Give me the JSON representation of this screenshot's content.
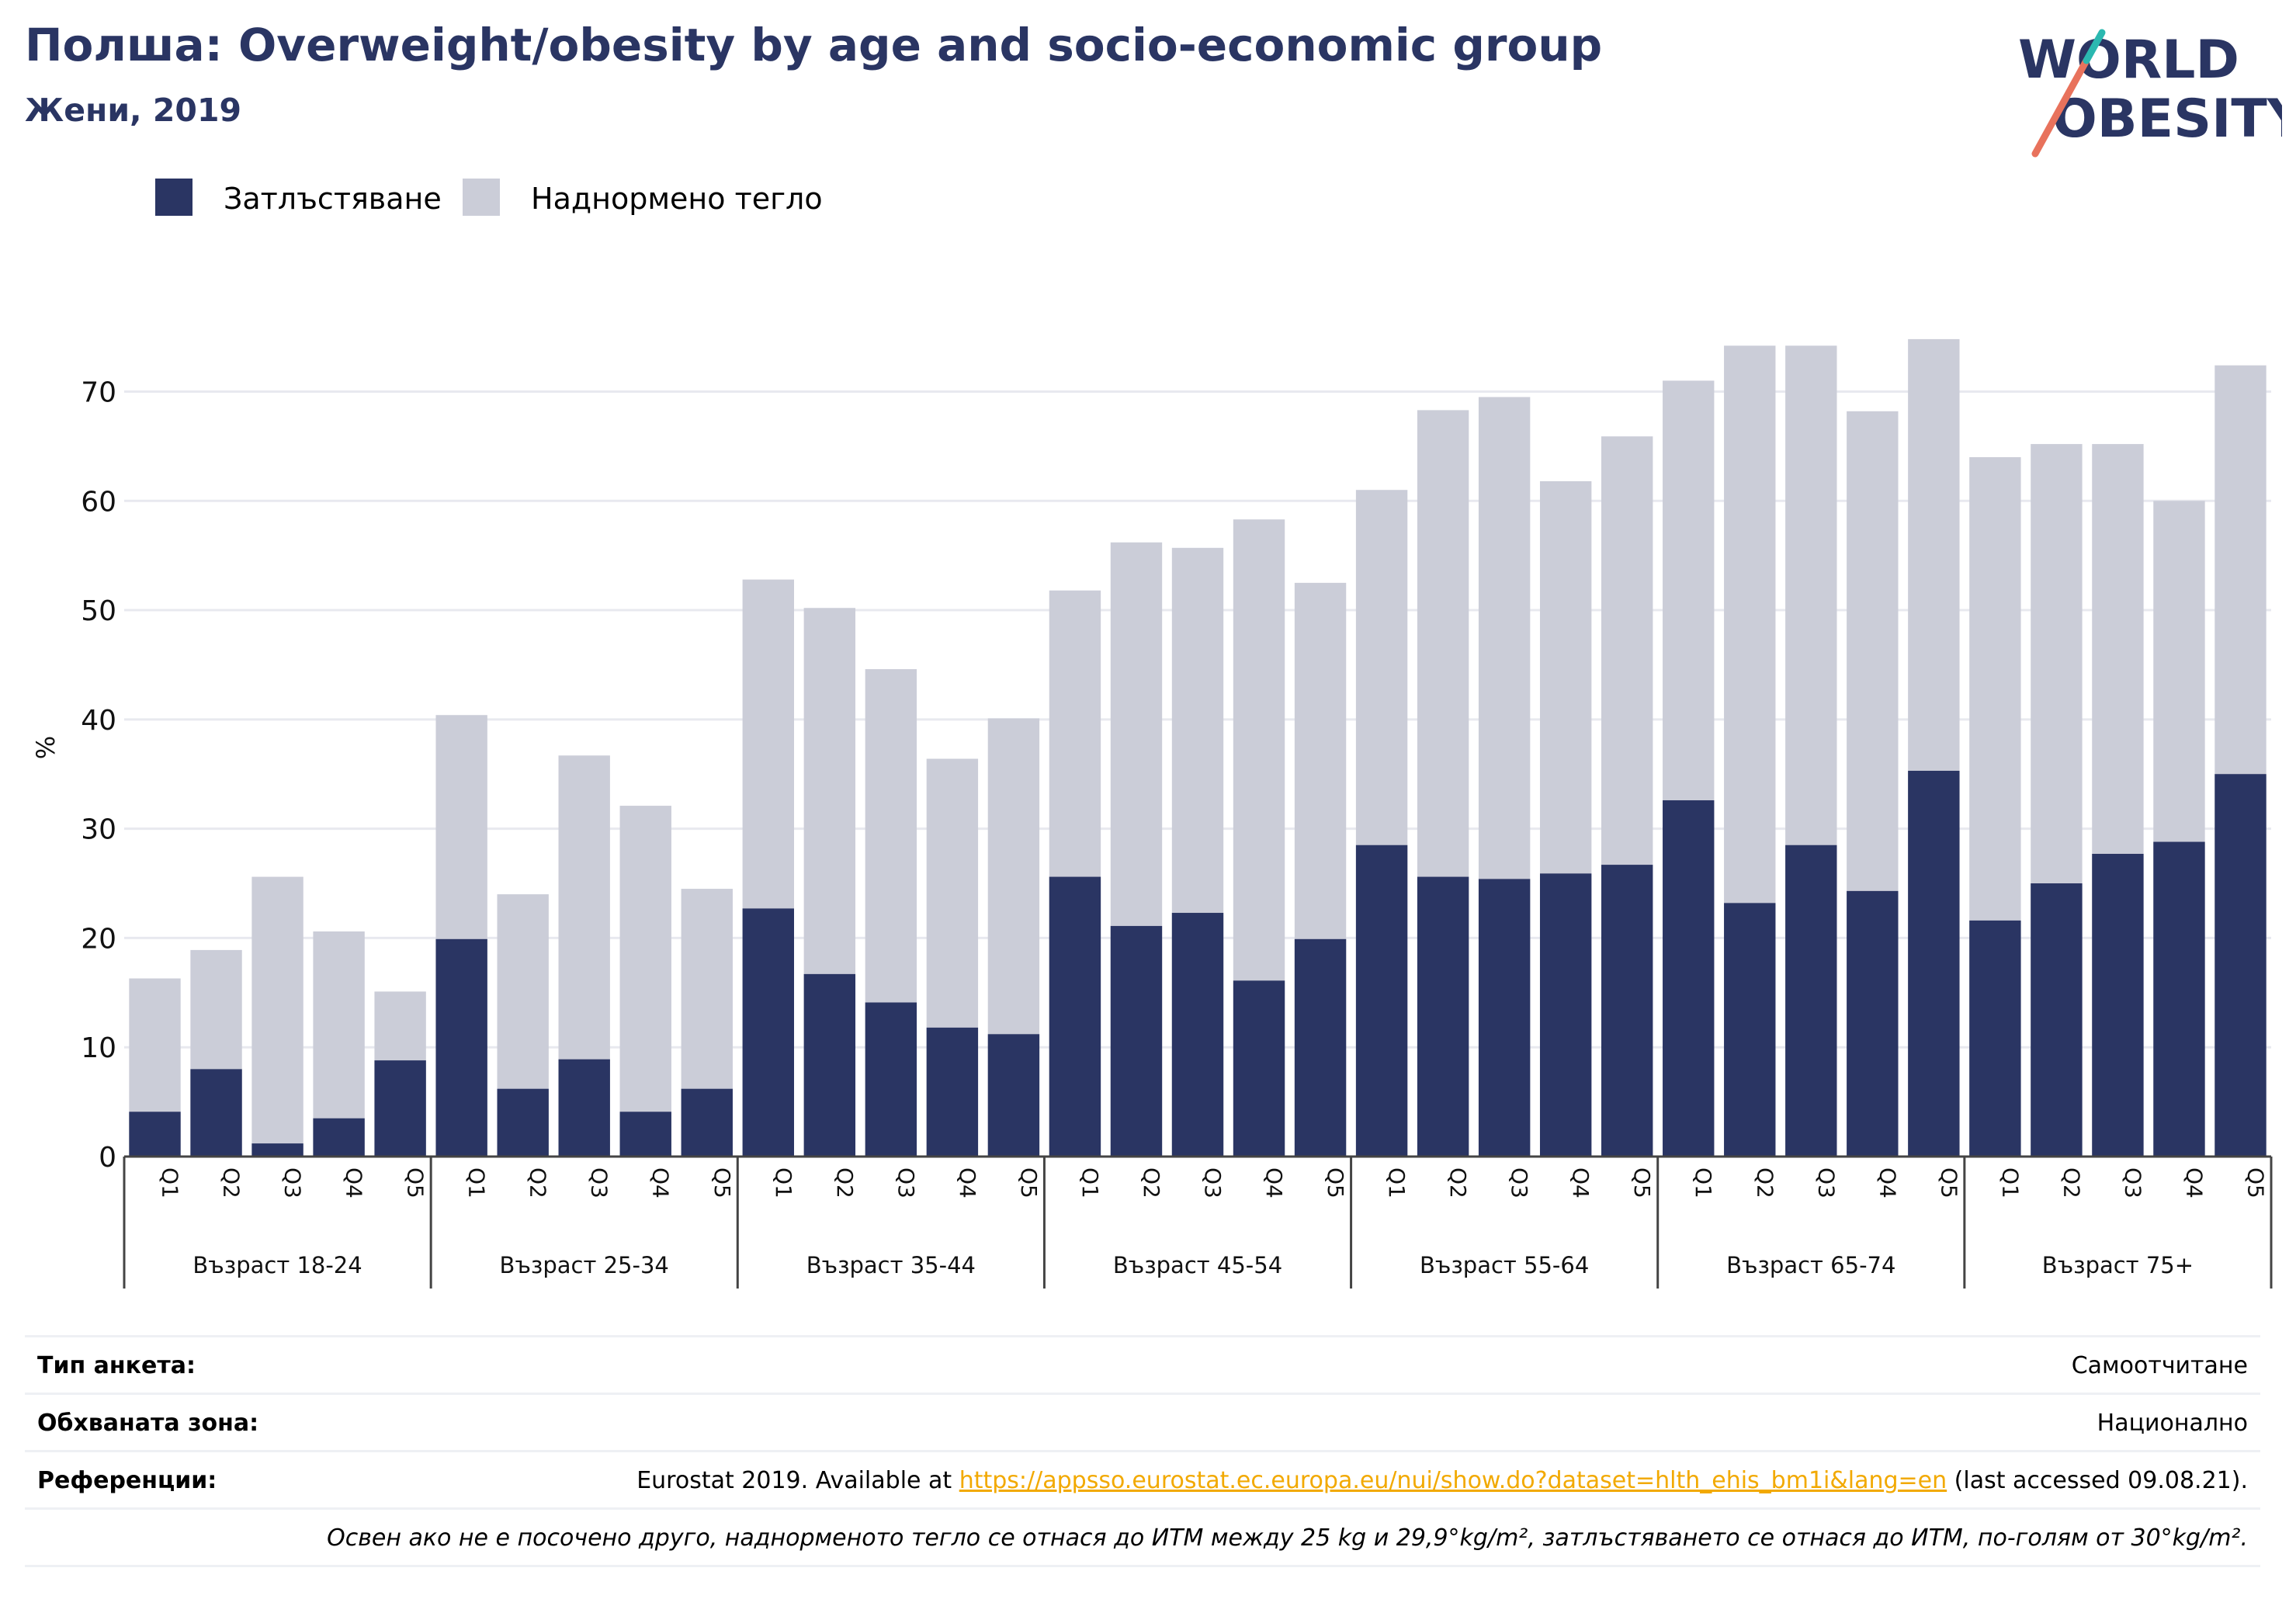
{
  "header": {
    "title": "Полша: Overweight/obesity by age and socio-economic group",
    "subtitle": "Жени, 2019"
  },
  "logo": {
    "line1": "WORLD",
    "line2": "OBESITY",
    "colors": {
      "text": "#2a3563",
      "slash_teal": "#2bb8b0",
      "slash_coral": "#e8725c"
    }
  },
  "legend": {
    "items": [
      {
        "label": "Затлъстяване",
        "color": "#2a3563"
      },
      {
        "label": "Наднормено тегло",
        "color": "#cbcdd8"
      }
    ]
  },
  "chart_data": {
    "type": "bar",
    "stacked": true,
    "ylabel": "%",
    "ylim": [
      0,
      76
    ],
    "yticks": [
      0,
      10,
      20,
      30,
      40,
      50,
      60,
      70
    ],
    "grid": true,
    "colors": {
      "obesity": "#2a3563",
      "overweight": "#cbcdd8",
      "grid": "#e8e9ef"
    },
    "groups": [
      {
        "label": "Възраст 18-24",
        "categories": [
          "Q1",
          "Q2",
          "Q3",
          "Q4",
          "Q5"
        ],
        "obesity": [
          4.1,
          8.0,
          1.2,
          3.5,
          8.8
        ],
        "total": [
          16.3,
          18.9,
          25.6,
          20.6,
          15.1
        ]
      },
      {
        "label": "Възраст 25-34",
        "categories": [
          "Q1",
          "Q2",
          "Q3",
          "Q4",
          "Q5"
        ],
        "obesity": [
          19.9,
          6.2,
          8.9,
          4.1,
          6.2
        ],
        "total": [
          40.4,
          24.0,
          36.7,
          32.1,
          24.5
        ]
      },
      {
        "label": "Възраст 35-44",
        "categories": [
          "Q1",
          "Q2",
          "Q3",
          "Q4",
          "Q5"
        ],
        "obesity": [
          22.7,
          16.7,
          14.1,
          11.8,
          11.2
        ],
        "total": [
          52.8,
          50.2,
          44.6,
          36.4,
          40.1
        ]
      },
      {
        "label": "Възраст 45-54",
        "categories": [
          "Q1",
          "Q2",
          "Q3",
          "Q4",
          "Q5"
        ],
        "obesity": [
          25.6,
          21.1,
          22.3,
          16.1,
          19.9
        ],
        "total": [
          51.8,
          56.2,
          55.7,
          58.3,
          52.5
        ]
      },
      {
        "label": "Възраст 55-64",
        "categories": [
          "Q1",
          "Q2",
          "Q3",
          "Q4",
          "Q5"
        ],
        "obesity": [
          28.5,
          25.6,
          25.4,
          25.9,
          26.7
        ],
        "total": [
          61.0,
          68.3,
          69.5,
          61.8,
          65.9
        ]
      },
      {
        "label": "Възраст 65-74",
        "categories": [
          "Q1",
          "Q2",
          "Q3",
          "Q4",
          "Q5"
        ],
        "obesity": [
          32.6,
          23.2,
          28.5,
          24.3,
          35.3
        ],
        "total": [
          71.0,
          74.2,
          74.2,
          68.2,
          74.8
        ]
      },
      {
        "label": "Възраст 75+",
        "categories": [
          "Q1",
          "Q2",
          "Q3",
          "Q4",
          "Q5"
        ],
        "obesity": [
          21.6,
          25.0,
          27.7,
          28.8,
          35.0
        ],
        "total": [
          64.0,
          65.2,
          65.2,
          60.0,
          72.4
        ]
      }
    ]
  },
  "info": {
    "survey_type_label": "Тип анкета:",
    "survey_type_value": "Самоотчитане",
    "coverage_label": "Обхваната зона:",
    "coverage_value": "Национално",
    "references_label": "Референции:",
    "ref_prefix": "Eurostat 2019. Available at ",
    "ref_link": "https://appsso.eurostat.ec.europa.eu/nui/show.do?dataset=hlth_ehis_bm1i&lang=en",
    "ref_suffix": " (last accessed 09.08.21).",
    "note": "Освен ако не е посочено друго, наднорменото тегло се отнася до ИТМ между 25 kg и 29,9°kg/m², затлъстяването се отнася до ИТМ, по-голям от 30°kg/m²."
  }
}
